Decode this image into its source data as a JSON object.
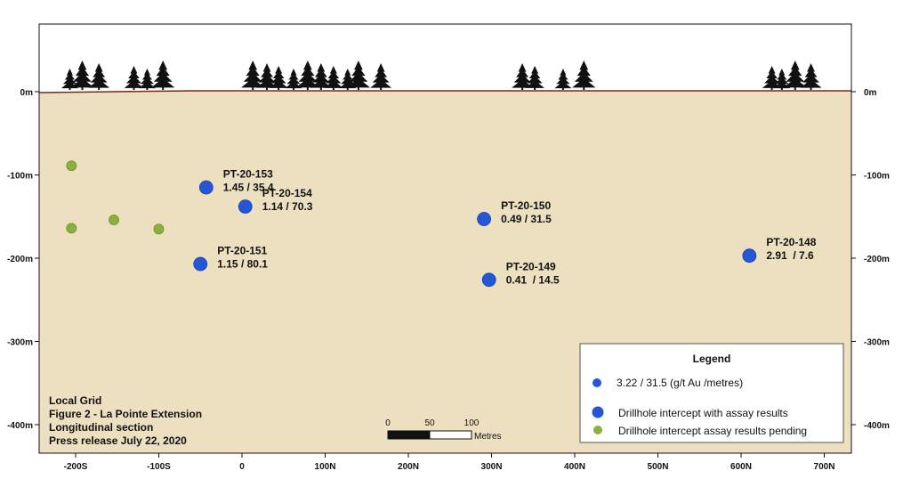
{
  "chart_data": {
    "type": "scatter",
    "colors": {
      "ground": "#ede0c1",
      "surface": "#7a2a1a",
      "assayed": "#2456d8",
      "pending": "#8bb13d",
      "tree": "#111111"
    },
    "xlim": [
      -250,
      730
    ],
    "ylim": [
      -430,
      80
    ],
    "x_ticks": [
      {
        "value": -200,
        "label": "-200S"
      },
      {
        "value": -100,
        "label": "-100S"
      },
      {
        "value": 0,
        "label": "0"
      },
      {
        "value": 100,
        "label": "100N"
      },
      {
        "value": 200,
        "label": "200N"
      },
      {
        "value": 300,
        "label": "300N"
      },
      {
        "value": 400,
        "label": "400N"
      },
      {
        "value": 500,
        "label": "500N"
      },
      {
        "value": 600,
        "label": "600N"
      },
      {
        "value": 700,
        "label": "700N"
      }
    ],
    "y_ticks": [
      {
        "value": 0,
        "label": "0m"
      },
      {
        "value": -100,
        "label": "-100m"
      },
      {
        "value": -200,
        "label": "-200m"
      },
      {
        "value": -300,
        "label": "-300m"
      },
      {
        "value": -400,
        "label": "-400m"
      }
    ],
    "series": [
      {
        "name": "Drillhole intercept with assay results",
        "points": [
          {
            "x": -43,
            "y": -115,
            "hole": "PT-20-153",
            "grade": "1.45 / 35.4"
          },
          {
            "x": 4,
            "y": -138,
            "hole": "PT-20-154",
            "grade": "1.14 / 70.3"
          },
          {
            "x": -50,
            "y": -207,
            "hole": "PT-20-151",
            "grade": "1.15 / 80.1"
          },
          {
            "x": 291,
            "y": -153,
            "hole": "PT-20-150",
            "grade": "0.49 / 31.5"
          },
          {
            "x": 297,
            "y": -226,
            "hole": "PT-20-149",
            "grade": "0.41  / 14.5"
          },
          {
            "x": 610,
            "y": -197,
            "hole": "PT-20-148",
            "grade": "2.91  / 7.6"
          }
        ]
      },
      {
        "name": "Drillhole intercept assay results pending",
        "points": [
          {
            "x": -205,
            "y": -89
          },
          {
            "x": -205,
            "y": -164
          },
          {
            "x": -154,
            "y": -154
          },
          {
            "x": -100,
            "y": -165
          }
        ]
      }
    ],
    "tree_groups_x": [
      [
        -207,
        -192,
        -172,
        -130,
        -114,
        -95
      ],
      [
        13,
        30,
        44,
        62,
        79,
        95,
        110,
        127,
        140,
        167
      ],
      [
        337,
        352,
        386,
        411
      ],
      [
        637,
        649,
        665,
        684
      ]
    ],
    "legend": {
      "title": "Legend",
      "example_label": "3.22 / 31.5 (g/t Au /metres)",
      "entries": [
        {
          "label": "Drillhole intercept with assay results",
          "color": "#2456d8"
        },
        {
          "label": "Drillhole intercept assay results pending",
          "color": "#8bb13d"
        }
      ],
      "position": "bottom-right"
    },
    "notes": [
      "Local Grid",
      "Figure 2 - La Pointe Extension",
      "Longitudinal section",
      "Press release July 22, 2020"
    ],
    "scale_bar": {
      "labels": [
        "0",
        "50",
        "100"
      ],
      "unit": "Metres"
    }
  }
}
